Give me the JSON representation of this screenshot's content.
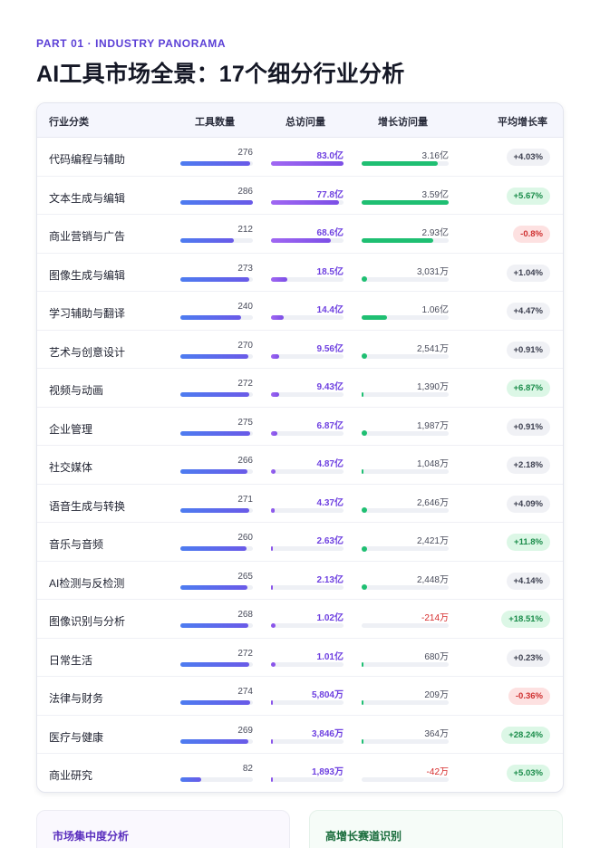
{
  "header": {
    "kicker": "PART 01 · INDUSTRY PANORAMA",
    "title": "AI工具市场全景：17个细分行业分析"
  },
  "table": {
    "columns": {
      "category": "行业分类",
      "tools": "工具数量",
      "visits": "总访问量",
      "growth_visits": "增长访问量",
      "avg_growth": "平均增长率"
    },
    "rows": [
      {
        "category": "代码编程与辅助",
        "tools": "276",
        "tools_frac": 0.96,
        "visits": "83.0亿",
        "visits_frac": 1.0,
        "growth": "3.16亿",
        "growth_frac": 0.88,
        "rate": "+4.03%",
        "rate_type": "neutral"
      },
      {
        "category": "文本生成与编辑",
        "tools": "286",
        "tools_frac": 1.0,
        "visits": "77.8亿",
        "visits_frac": 0.94,
        "growth": "3.59亿",
        "growth_frac": 1.0,
        "rate": "+5.67%",
        "rate_type": "up"
      },
      {
        "category": "商业营销与广告",
        "tools": "212",
        "tools_frac": 0.74,
        "visits": "68.6亿",
        "visits_frac": 0.83,
        "growth": "2.93亿",
        "growth_frac": 0.82,
        "rate": "-0.8%",
        "rate_type": "down"
      },
      {
        "category": "图像生成与编辑",
        "tools": "273",
        "tools_frac": 0.95,
        "visits": "18.5亿",
        "visits_frac": 0.22,
        "growth": "3,031万",
        "growth_frac": 0.08,
        "rate": "+1.04%",
        "rate_type": "neutral"
      },
      {
        "category": "学习辅助与翻译",
        "tools": "240",
        "tools_frac": 0.84,
        "visits": "14.4亿",
        "visits_frac": 0.17,
        "growth": "1.06亿",
        "growth_frac": 0.29,
        "rate": "+4.47%",
        "rate_type": "neutral"
      },
      {
        "category": "艺术与创意设计",
        "tools": "270",
        "tools_frac": 0.94,
        "visits": "9.56亿",
        "visits_frac": 0.115,
        "growth": "2,541万",
        "growth_frac": 0.07,
        "rate": "+0.91%",
        "rate_type": "neutral"
      },
      {
        "category": "视频与动画",
        "tools": "272",
        "tools_frac": 0.95,
        "visits": "9.43亿",
        "visits_frac": 0.114,
        "growth": "1,390万",
        "growth_frac": 0.04,
        "rate": "+6.87%",
        "rate_type": "up"
      },
      {
        "category": "企业管理",
        "tools": "275",
        "tools_frac": 0.96,
        "visits": "6.87亿",
        "visits_frac": 0.083,
        "growth": "1,987万",
        "growth_frac": 0.055,
        "rate": "+0.91%",
        "rate_type": "neutral"
      },
      {
        "category": "社交媒体",
        "tools": "266",
        "tools_frac": 0.93,
        "visits": "4.87亿",
        "visits_frac": 0.059,
        "growth": "1,048万",
        "growth_frac": 0.03,
        "rate": "+2.18%",
        "rate_type": "neutral"
      },
      {
        "category": "语音生成与转换",
        "tools": "271",
        "tools_frac": 0.95,
        "visits": "4.37亿",
        "visits_frac": 0.053,
        "growth": "2,646万",
        "growth_frac": 0.074,
        "rate": "+4.09%",
        "rate_type": "neutral"
      },
      {
        "category": "音乐与音频",
        "tools": "260",
        "tools_frac": 0.91,
        "visits": "2.63亿",
        "visits_frac": 0.032,
        "growth": "2,421万",
        "growth_frac": 0.067,
        "rate": "+11.8%",
        "rate_type": "up"
      },
      {
        "category": "AI检测与反检测",
        "tools": "265",
        "tools_frac": 0.93,
        "visits": "2.13亿",
        "visits_frac": 0.026,
        "growth": "2,448万",
        "growth_frac": 0.068,
        "rate": "+4.14%",
        "rate_type": "neutral"
      },
      {
        "category": "图像识别与分析",
        "tools": "268",
        "tools_frac": 0.94,
        "visits": "1.02亿",
        "visits_frac": 0.012,
        "growth": "-214万",
        "growth_frac": 0,
        "rate": "+18.51%",
        "rate_type": "up"
      },
      {
        "category": "日常生活",
        "tools": "272",
        "tools_frac": 0.95,
        "visits": "1.01亿",
        "visits_frac": 0.012,
        "growth": "680万",
        "growth_frac": 0.019,
        "rate": "+0.23%",
        "rate_type": "neutral"
      },
      {
        "category": "法律与财务",
        "tools": "274",
        "tools_frac": 0.96,
        "visits": "5,804万",
        "visits_frac": 0.007,
        "growth": "209万",
        "growth_frac": 0.006,
        "rate": "-0.36%",
        "rate_type": "down"
      },
      {
        "category": "医疗与健康",
        "tools": "269",
        "tools_frac": 0.94,
        "visits": "3,846万",
        "visits_frac": 0.005,
        "growth": "364万",
        "growth_frac": 0.01,
        "rate": "+28.24%",
        "rate_type": "up"
      },
      {
        "category": "商业研究",
        "tools": "82",
        "tools_frac": 0.29,
        "visits": "1,893万",
        "visits_frac": 0.002,
        "growth": "-42万",
        "growth_frac": 0,
        "rate": "+5.03%",
        "rate_type": "up"
      }
    ]
  },
  "panels": {
    "left_title": "市场集中度分析",
    "right_title": "高增长赛道识别"
  },
  "colors": {
    "accent": "#5b3fd6",
    "tools_bar": "#5a6cec",
    "visits_bar": "#8a55ea",
    "growth_bar": "#1fbf72",
    "negative": "#d62b2b"
  }
}
